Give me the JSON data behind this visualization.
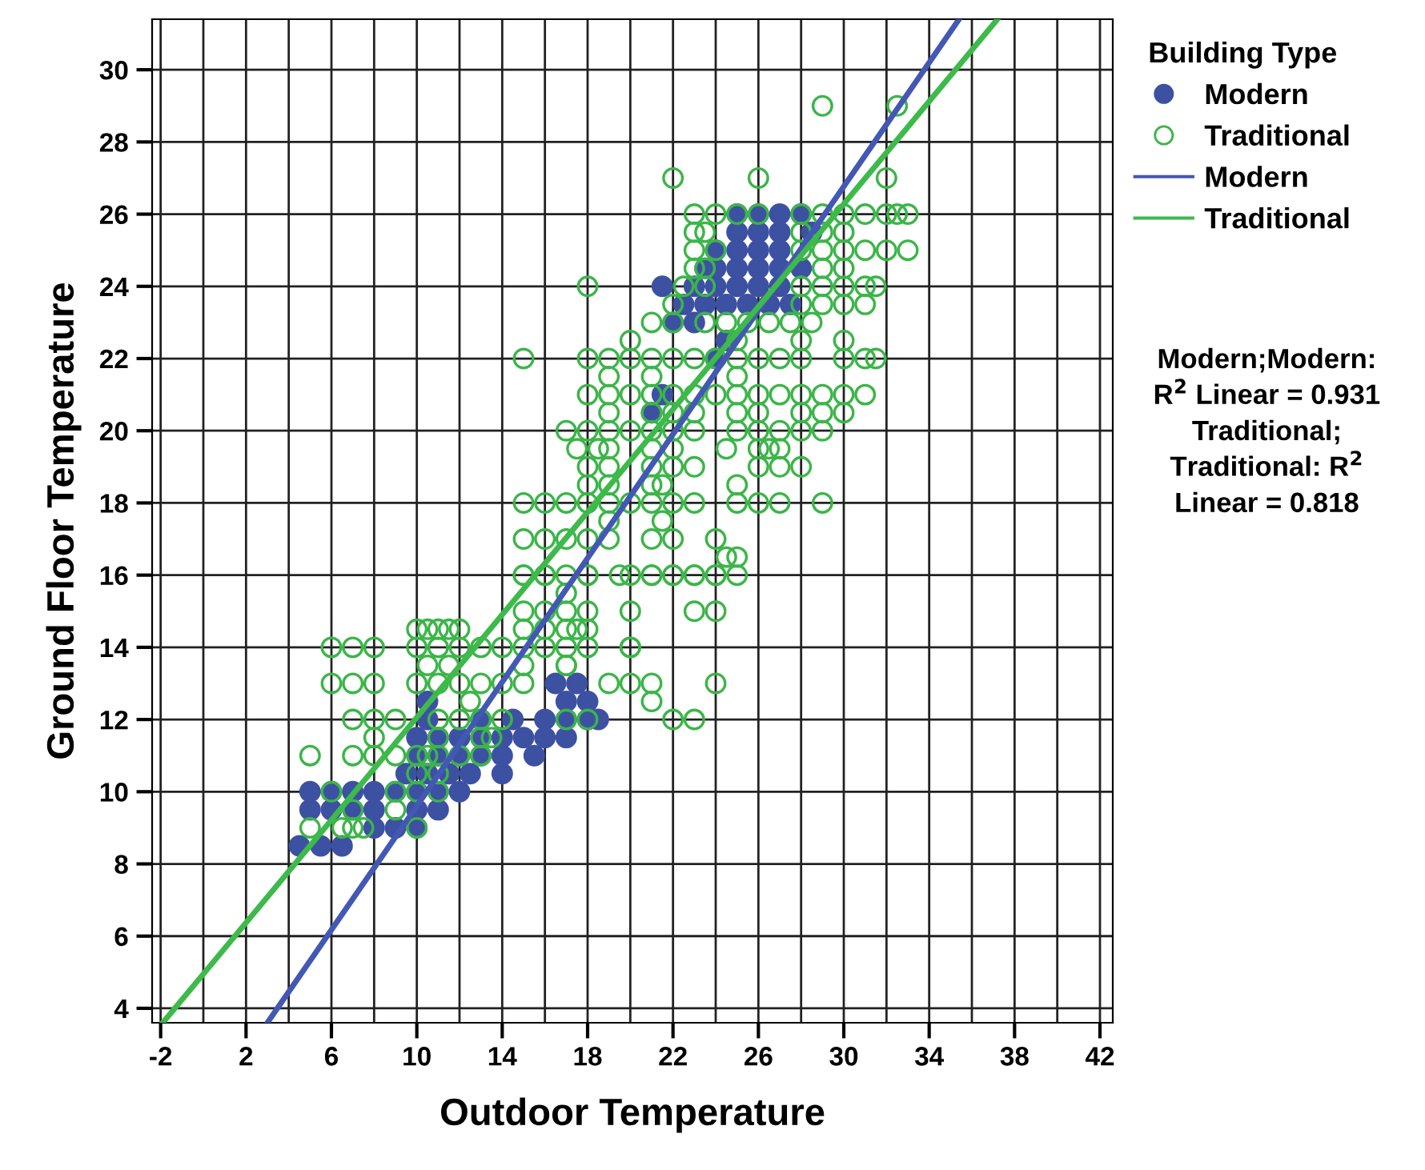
{
  "chart_data": {
    "type": "scatter",
    "xlabel": "Outdoor Temperature",
    "ylabel": "Ground Floor Temperature",
    "legend_title": "Building Type",
    "legend": "right",
    "grid": true,
    "xlim": [
      -2.4,
      42.6
    ],
    "ylim": [
      3.6,
      31.4
    ],
    "xticks": [
      -2,
      {
        "value": 0,
        "label": null
      },
      2,
      {
        "value": 4,
        "label": null
      },
      6,
      {
        "value": 8,
        "label": null
      },
      10,
      {
        "value": 12,
        "label": null
      },
      14,
      {
        "value": 16,
        "label": null
      },
      18,
      {
        "value": 20,
        "label": null
      },
      22,
      {
        "value": 24,
        "label": null
      },
      26,
      {
        "value": 28,
        "label": null
      },
      30,
      {
        "value": 32,
        "label": null
      },
      34,
      {
        "value": 36,
        "label": null
      },
      38,
      {
        "value": 40,
        "label": null
      },
      42
    ],
    "yticks": [
      4,
      6,
      8,
      10,
      12,
      14,
      16,
      18,
      20,
      22,
      24,
      26,
      28,
      30
    ],
    "annotations": [
      "Modern;Modern:\nR$^{2}$ Linear = 0.931\nTraditional;\nTraditional: R$^{2}$\nLinear = 0.818"
    ],
    "series": [
      {
        "name": "Modern",
        "color": "#3d51a3",
        "marker": "circle",
        "x": [
          4.5,
          5.5,
          6.5,
          8,
          9,
          10,
          5,
          6,
          7,
          8,
          10,
          11,
          5,
          6,
          7,
          8,
          9,
          10,
          11,
          12,
          9.5,
          10.5,
          11.5,
          12.5,
          14,
          10,
          11,
          12,
          13,
          14,
          15.5,
          10,
          11,
          12,
          13,
          14,
          15,
          16,
          17,
          10.5,
          13,
          14.5,
          16,
          17,
          18,
          18.5,
          10.5,
          17,
          18,
          16.5,
          17.5,
          21.5,
          25,
          26,
          27,
          28,
          25,
          26,
          27,
          28.5,
          24,
          25,
          26,
          27,
          23.5,
          24,
          25,
          26,
          27,
          28,
          23,
          24,
          25,
          26,
          27,
          22.5,
          23.5,
          24.5,
          25.5,
          26.5,
          27.5,
          22,
          23,
          24.5,
          24,
          21.5,
          21
        ],
        "values": [
          8.5,
          8.5,
          8.5,
          9,
          9,
          9,
          9.5,
          9.5,
          9.5,
          9.5,
          9.5,
          9.5,
          10,
          10,
          10,
          10,
          10,
          10,
          10,
          10,
          10.5,
          10.5,
          10.5,
          10.5,
          10.5,
          11,
          11,
          11,
          11,
          11,
          11,
          11.5,
          11.5,
          11.5,
          11.5,
          11.5,
          11.5,
          11.5,
          11.5,
          12,
          12,
          12,
          12,
          12,
          12,
          12,
          12.5,
          12.5,
          12.5,
          13,
          13,
          24,
          26,
          26,
          26,
          26,
          25.5,
          25.5,
          25.5,
          25.5,
          25,
          25,
          25,
          25,
          24.5,
          24.5,
          24.5,
          24.5,
          24.5,
          24.5,
          24,
          24,
          24,
          24,
          24,
          23.5,
          23.5,
          23.5,
          23.5,
          23.5,
          23.5,
          23,
          23,
          22.5,
          22,
          21,
          20.5
        ]
      },
      {
        "name": "Traditional",
        "color": "#3cb549",
        "marker": "circle",
        "x": [
          5,
          6.5,
          7,
          7.5,
          10,
          7,
          9,
          6,
          9,
          10,
          11,
          10,
          11,
          5,
          7,
          8,
          9,
          10,
          10.5,
          11,
          12,
          13,
          8,
          11,
          13,
          13.5,
          7,
          8,
          9,
          11,
          12,
          13,
          14,
          17,
          18,
          12.5,
          21,
          6,
          7,
          8,
          10,
          11,
          12,
          13,
          14,
          15,
          19,
          20,
          10.5,
          11.5,
          15,
          17,
          6,
          7,
          8,
          10,
          11,
          12,
          13,
          14,
          15,
          16,
          17,
          18,
          20,
          10,
          10.5,
          11,
          11.5,
          12,
          17.5,
          15,
          16,
          17,
          18,
          20,
          21,
          22,
          23,
          24,
          17,
          15,
          16,
          17,
          18,
          20,
          23,
          24,
          15,
          16,
          17,
          18,
          20,
          21,
          22,
          23,
          24,
          17,
          15,
          16,
          18,
          19.5,
          21,
          22,
          23,
          24,
          25,
          24.5,
          25,
          15,
          16,
          17,
          18,
          19,
          21,
          22,
          24,
          19,
          21.5,
          15,
          16,
          17,
          18,
          19,
          20,
          21,
          22,
          23,
          25,
          26,
          27,
          29,
          18,
          19,
          21,
          21.5,
          25,
          18,
          19,
          21,
          22,
          23,
          26,
          27,
          28,
          17.5,
          18.5,
          19,
          21,
          22,
          24.5,
          26,
          26.5,
          27,
          17,
          18,
          19,
          20,
          21,
          22,
          23,
          25,
          26,
          27,
          28,
          29,
          19,
          21,
          22,
          23,
          25,
          26,
          28,
          29,
          30,
          18,
          19,
          20,
          21,
          22,
          23,
          24,
          25,
          26,
          27,
          28,
          29,
          30,
          31,
          19,
          21,
          25,
          15,
          18,
          19,
          20,
          21,
          22,
          23,
          24,
          25,
          26,
          27,
          28,
          30,
          31,
          31.5,
          20,
          25,
          28,
          30,
          21,
          22,
          23.5,
          24.5,
          25.5,
          26.5,
          27.5,
          28.5,
          22,
          28,
          29,
          30,
          31,
          18,
          22.5,
          23.5,
          28,
          29,
          30,
          31,
          31.5,
          23,
          23.5,
          29,
          30,
          23,
          24,
          28,
          29,
          30,
          31,
          32,
          33,
          23,
          23.5,
          28,
          29,
          30,
          23,
          24,
          25,
          26,
          28,
          29,
          30,
          31,
          32,
          32.5,
          33,
          22,
          26,
          32,
          29,
          32.5
        ],
        "values": [
          9,
          9,
          9,
          9,
          9,
          9.5,
          9.5,
          10,
          10,
          10,
          10,
          10.5,
          10.5,
          11,
          11,
          11,
          11,
          11,
          11,
          11,
          11,
          11,
          11.5,
          11.5,
          11.5,
          11.5,
          12,
          12,
          12,
          12,
          12,
          12,
          12,
          12,
          12,
          12.5,
          12.5,
          13,
          13,
          13,
          13,
          13,
          13,
          13,
          13,
          13,
          13,
          13,
          13.5,
          13.5,
          13.5,
          13.5,
          14,
          14,
          14,
          14,
          14,
          14,
          14,
          14,
          14,
          14,
          14,
          14,
          14,
          14.5,
          14.5,
          14.5,
          14.5,
          14.5,
          14.5,
          14.5,
          14.5,
          14.5,
          14.5,
          14,
          13,
          12,
          12,
          13,
          13.5,
          15,
          15,
          15,
          15,
          15,
          15,
          15,
          16,
          16,
          16,
          16,
          16,
          16,
          16,
          16,
          16,
          15.5,
          16,
          16,
          16,
          16,
          16,
          16,
          16,
          16,
          16,
          16.5,
          16.5,
          17,
          17,
          17,
          17,
          17,
          17,
          17,
          17,
          17.5,
          17.5,
          18,
          18,
          18,
          18,
          18,
          18,
          18,
          18,
          18,
          18,
          18,
          18,
          18,
          18.5,
          18.5,
          18.5,
          18.5,
          18.5,
          19,
          19,
          19,
          19,
          19,
          19,
          19,
          19,
          19.5,
          19.5,
          19.5,
          19.5,
          19.5,
          19.5,
          19.5,
          19.5,
          19.5,
          20,
          20,
          20,
          20,
          20,
          20,
          20,
          20,
          20,
          20,
          20,
          20,
          20.5,
          20.5,
          20.5,
          20.5,
          20.5,
          20.5,
          20.5,
          20.5,
          20.5,
          21,
          21,
          21,
          21,
          21,
          21,
          21,
          21,
          21,
          21,
          21,
          21,
          21,
          21,
          21.5,
          21.5,
          21.5,
          22,
          22,
          22,
          22,
          22,
          22,
          22,
          22,
          22,
          22,
          22,
          22,
          22,
          22,
          22,
          22.5,
          22.5,
          22.5,
          22.5,
          23,
          23,
          23,
          23,
          23,
          23,
          23,
          23,
          23.5,
          23.5,
          23.5,
          23.5,
          23.5,
          24,
          24,
          24,
          24,
          24,
          24,
          24,
          24,
          24.5,
          24.5,
          24.5,
          24.5,
          25,
          25,
          25,
          25,
          25,
          25,
          25,
          25,
          25.5,
          25.5,
          25.5,
          25.5,
          25.5,
          26,
          26,
          26,
          26,
          26,
          26,
          26,
          26,
          26,
          26,
          26,
          27,
          27,
          27,
          29,
          29
        ]
      },
      {
        "name": "Modern",
        "type": "line",
        "marker": "none",
        "color": "#4357b5",
        "x": [
          3.0,
          35.4
        ],
        "values": [
          3.6,
          31.4
        ]
      },
      {
        "name": "Traditional",
        "type": "line",
        "marker": "none",
        "color": "#3dba4a",
        "x": [
          -1.9,
          37.2
        ],
        "values": [
          3.6,
          31.4
        ]
      }
    ]
  }
}
